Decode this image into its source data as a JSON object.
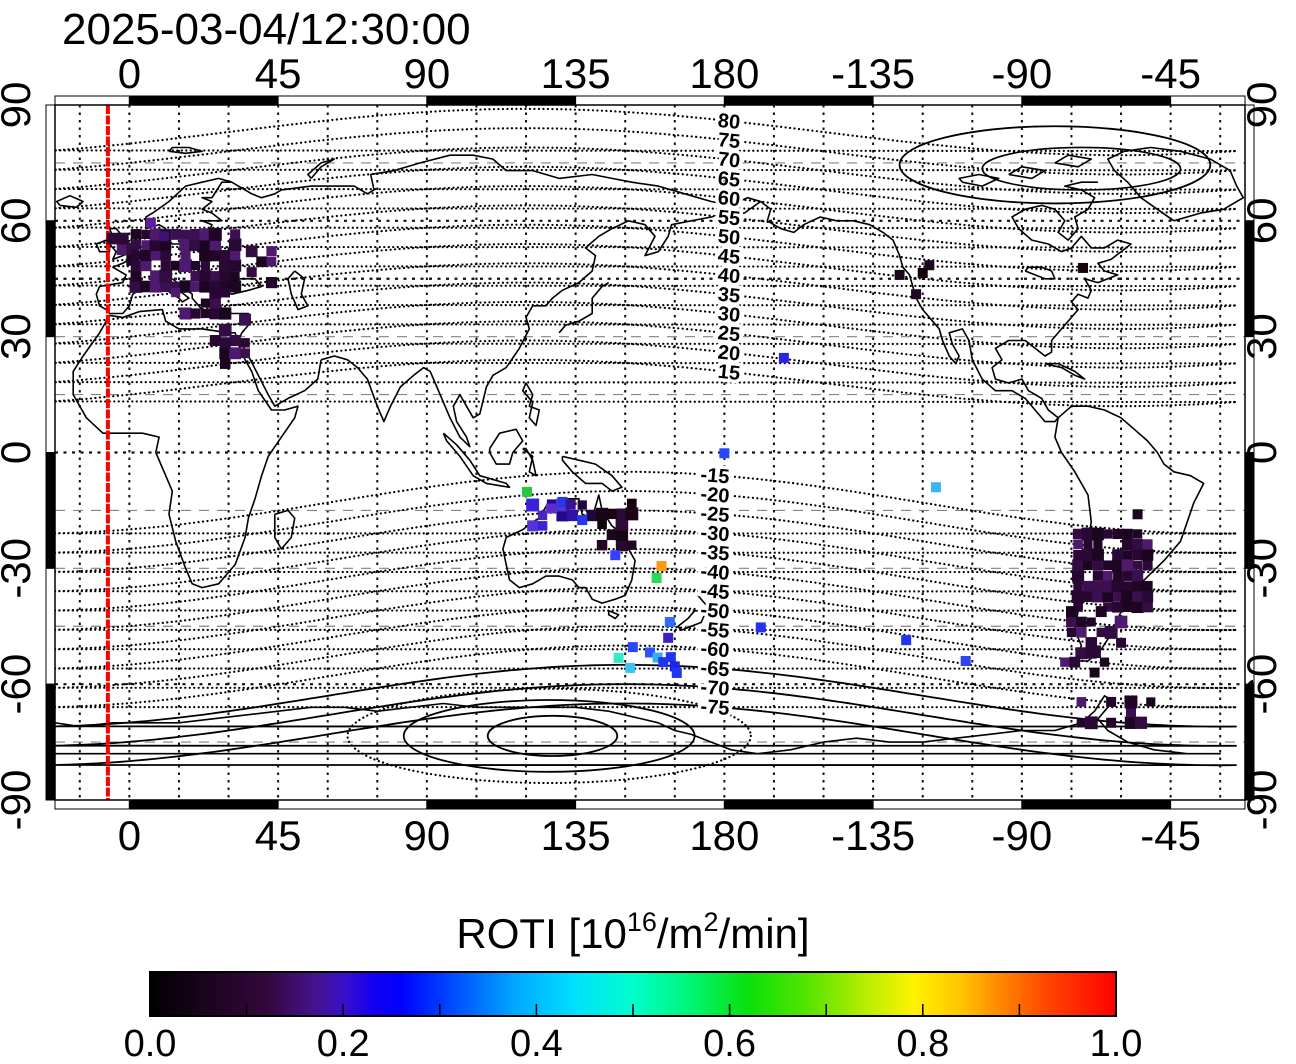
{
  "chart_data": {
    "type": "scatter",
    "subtype": "geo-map-roti",
    "title": "2025-03-04/12:30:00",
    "projection": {
      "lon_min": -22.5,
      "lon_max": 337.5,
      "lat_min": -90,
      "lat_max": 90
    },
    "x_axis": {
      "tick_lons": [
        0,
        45,
        90,
        135,
        180,
        225,
        270,
        315
      ],
      "tick_labels": [
        "0",
        "45",
        "90",
        "135",
        "180",
        "-135",
        "-90",
        "-45"
      ]
    },
    "y_axis": {
      "tick_lats": [
        90,
        60,
        30,
        0,
        -30,
        -60,
        -90
      ],
      "tick_labels": [
        "90",
        "60",
        "30",
        "0",
        "-30",
        "-60",
        "-90"
      ]
    },
    "graticule": {
      "lon_step": 15,
      "lat_step": 15,
      "heavy_lats": [
        60,
        45,
        0,
        -60
      ],
      "light_lats": [
        75,
        30,
        15,
        -15,
        -30,
        -45,
        -75
      ]
    },
    "contours": {
      "north_levels": [
        80,
        75,
        70,
        65,
        60,
        55,
        50,
        45,
        40,
        35,
        30,
        25,
        20,
        15
      ],
      "north_labels": [
        "80",
        "75",
        "70",
        "65",
        "60",
        "55",
        "50",
        "45",
        "40",
        "35",
        "30",
        "25",
        "20",
        "15"
      ],
      "south_levels": [
        -15,
        -20,
        -25,
        -30,
        -35,
        -40,
        -45,
        -50,
        -55,
        -60,
        -65,
        -70,
        -75
      ],
      "south_labels": [
        "-15",
        "-20",
        "-25",
        "-30",
        "-35",
        "-40",
        "-45",
        "-50",
        "-55",
        "-60",
        "-65",
        "-70",
        "-75"
      ],
      "label_lon_north": 181.2,
      "label_lon_south": 177
    },
    "red_line_lon": -6.5,
    "red_line_color": "#ff0000",
    "points": [
      [
        6.5,
        59.5,
        "#5a1e9f"
      ],
      [
        10.5,
        56,
        "#3d1178"
      ],
      [
        -118,
        48.5,
        "#1c0520"
      ],
      [
        -120,
        46.5,
        "#14030f"
      ],
      [
        -127,
        46,
        "#1d0618"
      ],
      [
        -122,
        41,
        "#200722"
      ],
      [
        -71.5,
        47.8,
        "#16040f"
      ],
      [
        -162,
        24.5,
        "#2a23e8"
      ],
      [
        180,
        -0.2,
        "#2547ff"
      ],
      [
        -116,
        -9,
        "#3ab4f2"
      ],
      [
        -169,
        -45.3,
        "#2334f0"
      ],
      [
        -125,
        -48.6,
        "#2334f0"
      ],
      [
        -107,
        -54,
        "#2d44f5"
      ],
      [
        120.3,
        -10.2,
        "#26c93c"
      ],
      [
        131,
        -12.8,
        "#2a35ee"
      ],
      [
        127.5,
        -14.5,
        "#5a2ecc"
      ],
      [
        133.5,
        -13.5,
        "#38128f"
      ],
      [
        137,
        -17.5,
        "#2a35ee"
      ],
      [
        147,
        -26.6,
        "#3342ff"
      ],
      [
        161,
        -29.4,
        "#ff9914"
      ],
      [
        159.5,
        -32.5,
        "#2ad95a"
      ],
      [
        163.5,
        -43.9,
        "#2e6bff"
      ],
      [
        163,
        -48,
        "#3d1ecb"
      ],
      [
        152.3,
        -50.4,
        "#2748ff"
      ],
      [
        148,
        -53.2,
        "#35e8c8"
      ],
      [
        157.5,
        -51.8,
        "#2e52ff"
      ],
      [
        159.8,
        -53.1,
        "#35aef0"
      ],
      [
        161.5,
        -54.3,
        "#2334f0"
      ],
      [
        163.8,
        -53,
        "#2334f0"
      ],
      [
        165,
        -55.4,
        "#1726e8"
      ],
      [
        151.5,
        -55.8,
        "#3cc3f2"
      ],
      [
        165.6,
        -57.1,
        "#2334f0"
      ],
      [
        -55,
        -16,
        "#1b0520"
      ]
    ],
    "palettes": {
      "dark": [
        "#1b0520",
        "#270731",
        "#330c41",
        "#200526",
        "#3c1050",
        "#2b0936",
        "#4d1a6e"
      ],
      "mixed": [
        "#2f12a8",
        "#3b22d6",
        "#24088a",
        "#4a25c4",
        "#2b0a38",
        "#5433d8",
        "#1f063f"
      ],
      "darkest": [
        "#12030f",
        "#1d0618",
        "#27082a",
        "#180513",
        "#220724",
        "#2e0a38"
      ]
    },
    "clusters": [
      {
        "name": "europe",
        "seed": 1,
        "palette": "dark",
        "boxes": [
          [
            -5,
            2,
            50,
            56,
            0.5
          ],
          [
            2,
            34,
            43,
            57,
            0.8
          ],
          [
            34,
            44,
            44,
            54,
            0.35
          ],
          [
            8,
            30,
            36,
            43,
            0.6
          ],
          [
            26,
            41,
            29,
            37,
            0.4
          ],
          [
            29,
            36,
            23,
            29,
            0.25
          ]
        ]
      },
      {
        "name": "south-america",
        "seed": 2,
        "palette": "dark",
        "boxes": [
          [
            -73,
            -49,
            -40,
            -19,
            0.85
          ],
          [
            -75,
            -57,
            -52,
            -40,
            0.5
          ],
          [
            -77,
            -61,
            -57,
            -51,
            0.25
          ],
          [
            -72,
            -44,
            -70,
            -61,
            0.28
          ]
        ]
      },
      {
        "name": "australia-north",
        "seed": 3,
        "palette": "mixed",
        "boxes": [
          [
            122,
            143,
            -19,
            -11,
            0.5
          ]
        ]
      },
      {
        "name": "queensland",
        "seed": 4,
        "palette": "darkest",
        "boxes": [
          [
            143,
            155,
            -24,
            -12,
            0.65
          ]
        ]
      }
    ],
    "colorbar": {
      "title_parts": {
        "t1": "ROTI  [10",
        "sup1": "16",
        "t2": "/m",
        "sup2": "2",
        "t3": "/min]"
      },
      "tick_labels": [
        "0.0",
        "0.2",
        "0.4",
        "0.6",
        "0.8",
        "1.0"
      ],
      "tick_values": [
        0,
        0.2,
        0.4,
        0.6,
        0.8,
        1.0
      ],
      "range": [
        0.0,
        1.0
      ],
      "stops": [
        [
          0,
          "#000000"
        ],
        [
          0.06,
          "#1c0420"
        ],
        [
          0.12,
          "#32083c"
        ],
        [
          0.17,
          "#45128c"
        ],
        [
          0.2,
          "#3a10c8"
        ],
        [
          0.23,
          "#1500f0"
        ],
        [
          0.26,
          "#0000ff"
        ],
        [
          0.32,
          "#0055ff"
        ],
        [
          0.38,
          "#00aaff"
        ],
        [
          0.44,
          "#00e0ff"
        ],
        [
          0.5,
          "#00ffcc"
        ],
        [
          0.56,
          "#00f573"
        ],
        [
          0.62,
          "#0ae00a"
        ],
        [
          0.68,
          "#55e400"
        ],
        [
          0.74,
          "#b5ee00"
        ],
        [
          0.79,
          "#fff200"
        ],
        [
          0.84,
          "#ffc400"
        ],
        [
          0.88,
          "#ff8800"
        ],
        [
          0.93,
          "#ff4400"
        ],
        [
          1,
          "#ff0000"
        ]
      ]
    }
  }
}
